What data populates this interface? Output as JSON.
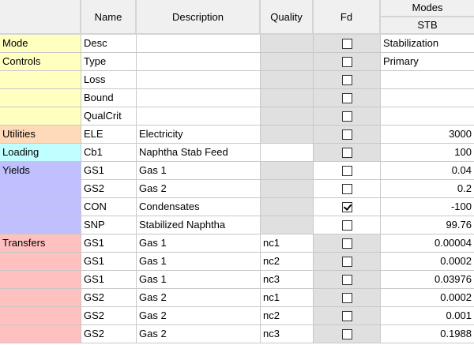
{
  "header": {
    "category": "",
    "name": "Name",
    "description": "Description",
    "quality": "Quality",
    "fd": "Fd",
    "modes": "Modes",
    "mode_col": "STB"
  },
  "colors": {
    "Mode": "#ffffc0",
    "Controls": "#ffffc0",
    "Utilities": "#ffdab9",
    "Loading": "#c0ffff",
    "Yields": "#c0c0ff",
    "Transfers": "#ffc0c0",
    "readonly": "#e0e0e0"
  },
  "rows": [
    {
      "group": "Mode",
      "label": "Mode",
      "name": "Desc",
      "desc": "",
      "quality": "",
      "qgray": true,
      "fdgray": true,
      "fd": false,
      "value": "Stabilization",
      "align": "left"
    },
    {
      "group": "Controls",
      "label": "Controls",
      "name": "Type",
      "desc": "",
      "quality": "",
      "qgray": true,
      "fdgray": true,
      "fd": false,
      "value": "Primary",
      "align": "left"
    },
    {
      "group": "Controls",
      "label": "",
      "name": "Loss",
      "desc": "",
      "quality": "",
      "qgray": true,
      "fdgray": true,
      "fd": false,
      "value": "",
      "align": "left"
    },
    {
      "group": "Controls",
      "label": "",
      "name": "Bound",
      "desc": "",
      "quality": "",
      "qgray": true,
      "fdgray": true,
      "fd": false,
      "value": "",
      "align": "left"
    },
    {
      "group": "Controls",
      "label": "",
      "name": "QualCrit",
      "desc": "",
      "quality": "",
      "qgray": true,
      "fdgray": true,
      "fd": false,
      "value": "",
      "align": "left"
    },
    {
      "group": "Utilities",
      "label": "Utilities",
      "name": "ELE",
      "desc": "Electricity",
      "quality": "",
      "qgray": true,
      "fdgray": true,
      "fd": false,
      "value": "3000",
      "align": "right"
    },
    {
      "group": "Loading",
      "label": "Loading",
      "name": "Cb1",
      "desc": "Naphtha Stab Feed",
      "quality": "",
      "qgray": false,
      "fdgray": true,
      "fd": false,
      "value": "100",
      "align": "right"
    },
    {
      "group": "Yields",
      "label": "Yields",
      "name": "GS1",
      "desc": "Gas 1",
      "quality": "",
      "qgray": true,
      "fdgray": false,
      "fd": false,
      "value": "0.04",
      "align": "right"
    },
    {
      "group": "Yields",
      "label": "",
      "name": "GS2",
      "desc": "Gas 2",
      "quality": "",
      "qgray": true,
      "fdgray": false,
      "fd": false,
      "value": "0.2",
      "align": "right"
    },
    {
      "group": "Yields",
      "label": "",
      "name": "CON",
      "desc": "Condensates",
      "quality": "",
      "qgray": true,
      "fdgray": false,
      "fd": true,
      "value": "-100",
      "align": "right"
    },
    {
      "group": "Yields",
      "label": "",
      "name": "SNP",
      "desc": "Stabilized Naphtha",
      "quality": "",
      "qgray": true,
      "fdgray": false,
      "fd": false,
      "value": "99.76",
      "align": "right"
    },
    {
      "group": "Transfers",
      "label": "Transfers",
      "name": "GS1",
      "desc": "Gas 1",
      "quality": "nc1",
      "qgray": false,
      "fdgray": true,
      "fd": false,
      "value": "0.00004",
      "align": "right"
    },
    {
      "group": "Transfers",
      "label": "",
      "name": "GS1",
      "desc": "Gas 1",
      "quality": "nc2",
      "qgray": false,
      "fdgray": true,
      "fd": false,
      "value": "0.0002",
      "align": "right"
    },
    {
      "group": "Transfers",
      "label": "",
      "name": "GS1",
      "desc": "Gas 1",
      "quality": "nc3",
      "qgray": false,
      "fdgray": true,
      "fd": false,
      "value": "0.03976",
      "align": "right"
    },
    {
      "group": "Transfers",
      "label": "",
      "name": "GS2",
      "desc": "Gas 2",
      "quality": "nc1",
      "qgray": false,
      "fdgray": true,
      "fd": false,
      "value": "0.0002",
      "align": "right"
    },
    {
      "group": "Transfers",
      "label": "",
      "name": "GS2",
      "desc": "Gas 2",
      "quality": "nc2",
      "qgray": false,
      "fdgray": true,
      "fd": false,
      "value": "0.001",
      "align": "right"
    },
    {
      "group": "Transfers",
      "label": "",
      "name": "GS2",
      "desc": "Gas 2",
      "quality": "nc3",
      "qgray": false,
      "fdgray": true,
      "fd": false,
      "value": "0.1988",
      "align": "right"
    }
  ]
}
